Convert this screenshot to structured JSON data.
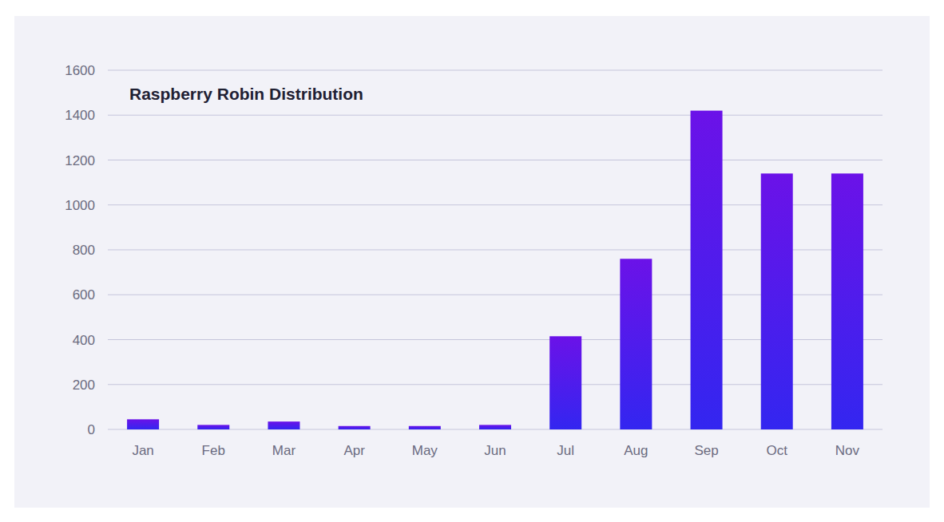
{
  "chart_data": {
    "type": "bar",
    "title": "Raspberry Robin Distribution",
    "categories": [
      "Jan",
      "Feb",
      "Mar",
      "Apr",
      "May",
      "Jun",
      "Jul",
      "Aug",
      "Sep",
      "Oct",
      "Nov"
    ],
    "values": [
      45,
      20,
      35,
      15,
      15,
      20,
      415,
      760,
      1420,
      1140,
      1140
    ],
    "color": "#6b12e8",
    "ylim": [
      0,
      1600
    ],
    "yticks": [
      0,
      200,
      400,
      600,
      800,
      1000,
      1200,
      1400,
      1600
    ],
    "grid": true
  }
}
